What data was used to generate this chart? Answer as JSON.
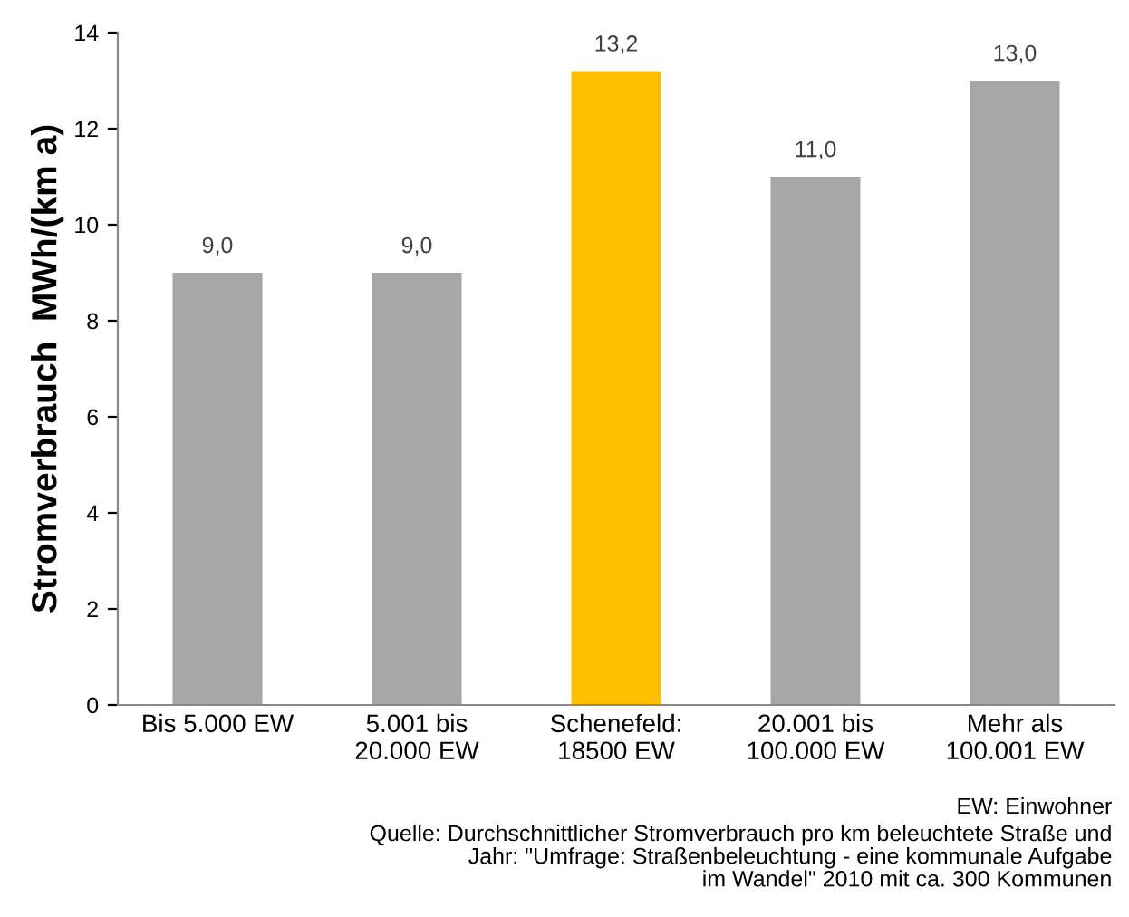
{
  "chart_data": {
    "type": "bar",
    "ylabel": "Stromverbrauch  MWh/(km a)",
    "categories": [
      "Bis 5.000 EW",
      "5.001 bis\n20.000 EW",
      "Schenefeld:\n18500 EW",
      "20.001 bis\n100.000 EW",
      "Mehr als\n100.001 EW"
    ],
    "values": [
      9.0,
      9.0,
      13.2,
      11.0,
      13.0
    ],
    "colors": [
      "#a6a6a6",
      "#a6a6a6",
      "#ffc000",
      "#a6a6a6",
      "#a6a6a6"
    ],
    "value_labels": [
      "9,0",
      "9,0",
      "13,2",
      "11,0",
      "13,0"
    ],
    "ylim": [
      0,
      14
    ],
    "yticks": [
      0,
      2,
      4,
      6,
      8,
      10,
      12,
      14
    ],
    "grid": false,
    "legend": false,
    "annotations": [
      "EW: Einwohner",
      "Quelle: Durchschnittlicher Stromverbrauch pro km beleuchtete Straße und\nJahr: \"Umfrage: Straßenbeleuchtung - eine kommunale Aufgabe\nim Wandel\" 2010 mit ca. 300 Kommunen"
    ]
  }
}
